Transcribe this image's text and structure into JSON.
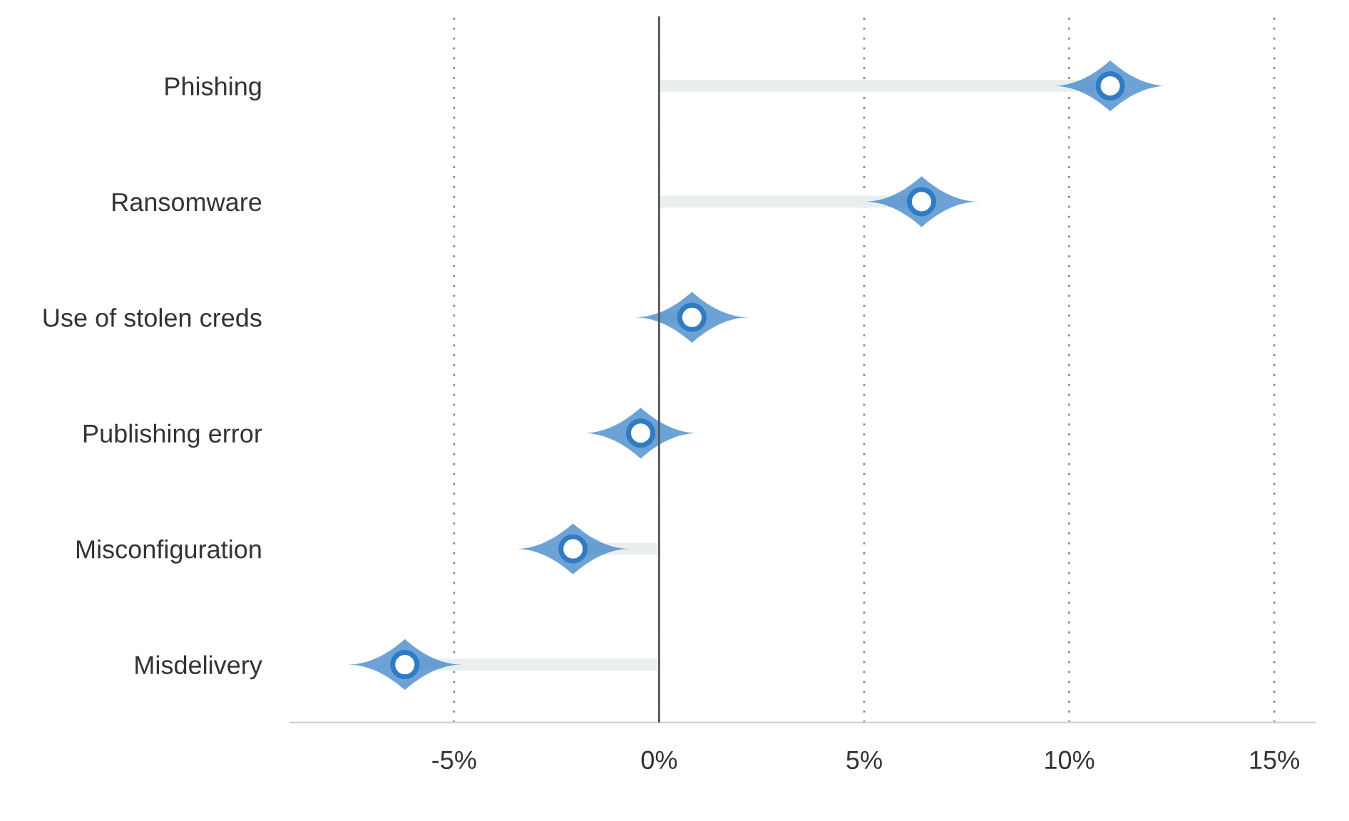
{
  "chart_data": {
    "type": "lollipop",
    "orientation": "horizontal",
    "categories": [
      "Phishing",
      "Ransomware",
      "Use of stolen creds",
      "Publishing error",
      "Misconfiguration",
      "Misdelivery"
    ],
    "values": [
      11.0,
      6.4,
      0.8,
      -0.45,
      -2.1,
      -6.2
    ],
    "color": "#2f7bc4",
    "xlim": [
      -9,
      16
    ],
    "xticks": [
      {
        "value": -5,
        "label": "-5%"
      },
      {
        "value": 0,
        "label": "0%"
      },
      {
        "value": 5,
        "label": "5%"
      },
      {
        "value": 10,
        "label": "10%"
      },
      {
        "value": 15,
        "label": "15%"
      }
    ],
    "ref_lines": [
      {
        "axis": "x",
        "value": 0,
        "label": null,
        "color": "#555555",
        "line_style": "solid"
      }
    ],
    "grid": "x",
    "marker": "circle"
  }
}
